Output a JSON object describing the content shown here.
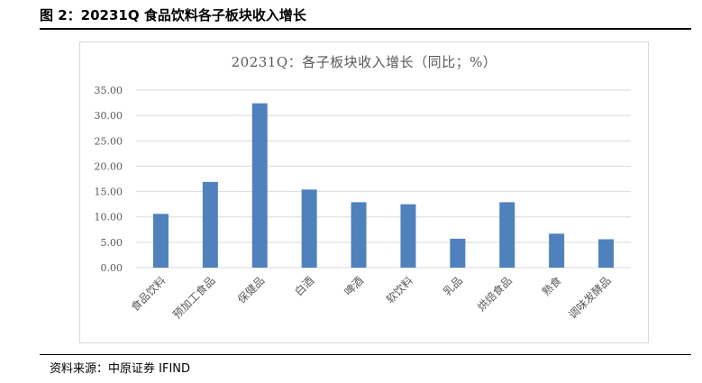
{
  "figure_title": "图 2：20231Q 食品饮料各子板块收入增长",
  "source": "资料来源：中原证券  IFIND",
  "colors": {
    "bar": "#4f81bd",
    "grid": "#d9d9d9",
    "axis_text": "#595959"
  },
  "chart_data": {
    "type": "bar",
    "title": "20231Q：各子板块收入增长（同比；%）",
    "xlabel": "",
    "ylabel": "",
    "categories": [
      "食品饮料",
      "预加工食品",
      "保健品",
      "白酒",
      "啤酒",
      "软饮料",
      "乳品",
      "烘焙食品",
      "熟食",
      "调味发酵品"
    ],
    "values": [
      10.6,
      16.9,
      32.4,
      15.4,
      12.9,
      12.5,
      5.7,
      12.9,
      6.7,
      5.6
    ],
    "ylim": [
      0,
      35
    ],
    "yticks": [
      "0.00",
      "5.00",
      "10.00",
      "15.00",
      "20.00",
      "25.00",
      "30.00",
      "35.00"
    ],
    "grid": true,
    "legend": "none"
  }
}
